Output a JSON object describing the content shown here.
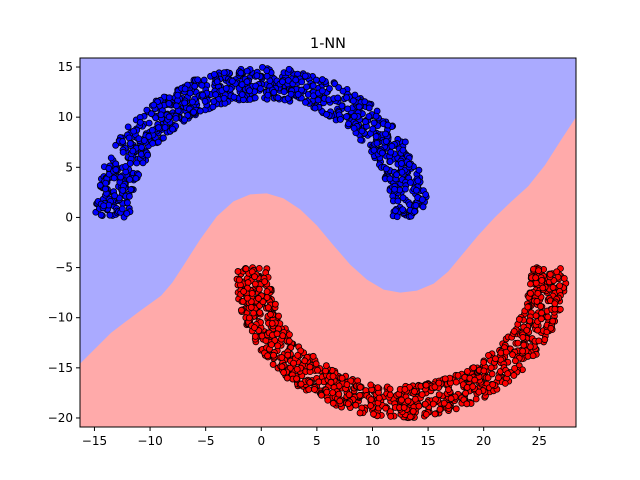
{
  "chart_data": {
    "type": "scatter",
    "title": "1-NN",
    "xlabel": "",
    "ylabel": "",
    "xlim": [
      -16.3,
      28.3
    ],
    "ylim": [
      -20.9,
      15.9
    ],
    "grid": false,
    "xticks": [
      -15,
      -10,
      -5,
      0,
      5,
      10,
      15,
      20,
      25
    ],
    "yticks": [
      -20,
      -15,
      -10,
      -5,
      0,
      5,
      10,
      15
    ],
    "background_regions": [
      {
        "name": "class-0-region",
        "color": "#aaaaff"
      },
      {
        "name": "class-1-region",
        "color": "#ffaaaa"
      }
    ],
    "decision_boundary": [
      [
        -16.3,
        -14.6
      ],
      [
        -13.5,
        -11.5
      ],
      [
        -11,
        -9.4
      ],
      [
        -9,
        -7.8
      ],
      [
        -8,
        -6.5
      ],
      [
        -7,
        -4.8
      ],
      [
        -5.5,
        -2.2
      ],
      [
        -4,
        0.1
      ],
      [
        -2.5,
        1.6
      ],
      [
        -1,
        2.3
      ],
      [
        0.5,
        2.4
      ],
      [
        2,
        1.9
      ],
      [
        3.5,
        0.8
      ],
      [
        5,
        -0.8
      ],
      [
        6.5,
        -2.8
      ],
      [
        8,
        -4.7
      ],
      [
        9.5,
        -6.2
      ],
      [
        11,
        -7.2
      ],
      [
        12.5,
        -7.5
      ],
      [
        14,
        -7.3
      ],
      [
        15.5,
        -6.6
      ],
      [
        16.8,
        -5.4
      ],
      [
        18,
        -3.8
      ],
      [
        19.5,
        -1.8
      ],
      [
        21,
        0
      ],
      [
        22.5,
        1.6
      ],
      [
        24,
        3.1
      ],
      [
        25.5,
        5.2
      ],
      [
        27,
        7.8
      ],
      [
        28.3,
        10
      ]
    ],
    "series": [
      {
        "color": "#0000ff",
        "edge_color": "#000000",
        "shape": "upper-arc",
        "center": [
          0,
          0
        ],
        "radius_range": [
          11.8,
          15
        ],
        "angle_range_deg": [
          0,
          180
        ],
        "count": 1000
      },
      {
        "color": "#ff0000",
        "edge_color": "#000000",
        "shape": "lower-arc",
        "center": [
          12.5,
          -5
        ],
        "radius_range": [
          11.8,
          15
        ],
        "angle_range_deg": [
          180,
          360
        ],
        "count": 1000
      }
    ]
  }
}
